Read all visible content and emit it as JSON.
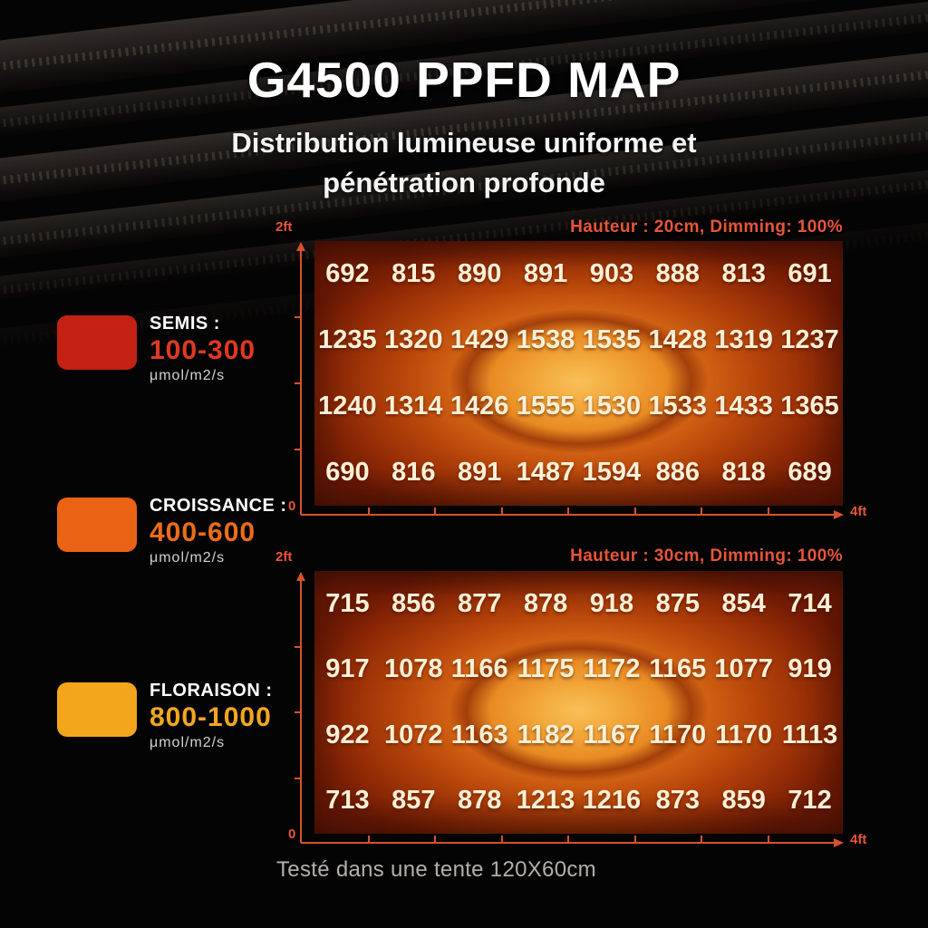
{
  "page": {
    "title": "G4500 PPFD MAP",
    "subtitle_line1": "Distribution lumineuse uniforme et",
    "subtitle_line2": "pénétration profonde",
    "footer": "Testé dans une tente 120X60cm"
  },
  "colors": {
    "accent": "#e8553a",
    "axis": "#d8512c",
    "value_text": "#fbf0d6",
    "heat_center": "#f5ae42",
    "heat_edge": "#701a05",
    "footer_text": "#b3afa9"
  },
  "legend": {
    "items": [
      {
        "label": "SEMIS :",
        "range": "100-300",
        "unit": "μmol/m2/s",
        "swatch_color": "#c32113",
        "range_color": "#e13824"
      },
      {
        "label": "CROISSANCE :",
        "range": "400-600",
        "unit": "μmol/m2/s",
        "swatch_color": "#ea6315",
        "range_color": "#ed6d17"
      },
      {
        "label": "FLORAISON :",
        "range": "800-1000",
        "unit": "μmol/m2/s",
        "swatch_color": "#f3a51c",
        "range_color": "#f2a71f"
      }
    ]
  },
  "chart_data": [
    {
      "type": "heatmap",
      "title": "Hauteur : 20cm, Dimming: 100%",
      "unit": "μmol/m2/s",
      "x_axis": {
        "start": "0",
        "end": "4ft"
      },
      "y_axis": {
        "end": "2ft"
      },
      "legend_position": "left",
      "grid": false,
      "values": [
        [
          692,
          815,
          890,
          891,
          903,
          888,
          813,
          691
        ],
        [
          1235,
          1320,
          1429,
          1538,
          1535,
          1428,
          1319,
          1237
        ],
        [
          1240,
          1314,
          1426,
          1555,
          1530,
          1533,
          1433,
          1365
        ],
        [
          690,
          816,
          891,
          1487,
          1594,
          886,
          818,
          689
        ]
      ]
    },
    {
      "type": "heatmap",
      "title": "Hauteur : 30cm, Dimming: 100%",
      "unit": "μmol/m2/s",
      "x_axis": {
        "start": "0",
        "end": "4ft"
      },
      "y_axis": {
        "end": "2ft"
      },
      "legend_position": "left",
      "grid": false,
      "values": [
        [
          715,
          856,
          877,
          878,
          918,
          875,
          854,
          714
        ],
        [
          917,
          1078,
          1166,
          1175,
          1172,
          1165,
          1077,
          919
        ],
        [
          922,
          1072,
          1163,
          1182,
          1167,
          1170,
          1170,
          1113
        ],
        [
          713,
          857,
          878,
          1213,
          1216,
          873,
          859,
          712
        ]
      ]
    }
  ]
}
